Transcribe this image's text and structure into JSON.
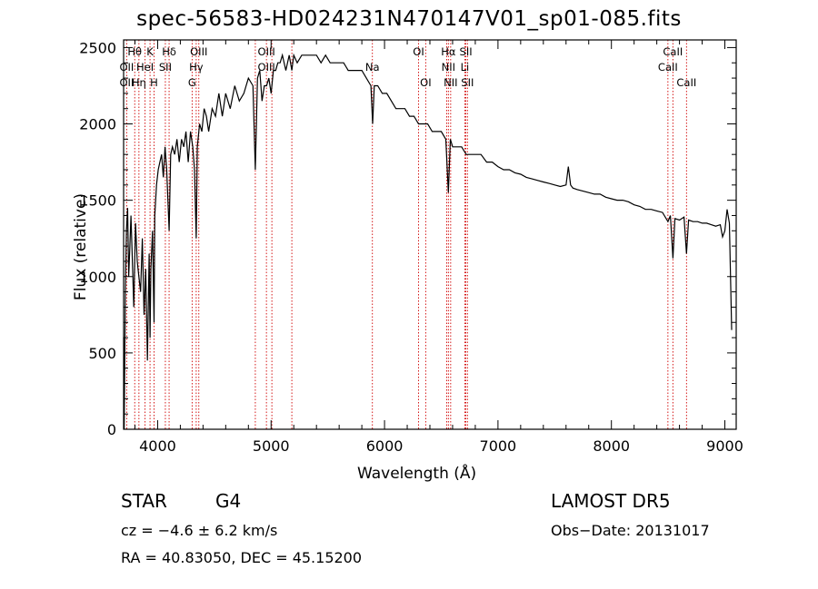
{
  "chart_data": {
    "type": "line",
    "title": "spec-56583-HD024231N470147V01_sp01-085.fits",
    "xlabel": "Wavelength (Å)",
    "ylabel": "Flux (relative)",
    "xlim": [
      3700,
      9100
    ],
    "ylim": [
      0,
      2550
    ],
    "xticks": [
      4000,
      5000,
      6000,
      7000,
      8000,
      9000
    ],
    "yticks": [
      0,
      500,
      1000,
      1500,
      2000,
      2500
    ],
    "tick_labels": {
      "x": [
        "4000",
        "5000",
        "6000",
        "7000",
        "8000",
        "9000"
      ],
      "y": [
        "0",
        "500",
        "1000",
        "1500",
        "2000",
        "2500"
      ]
    },
    "series": [
      {
        "x": [
          3700,
          3705,
          3715,
          3725,
          3735,
          3745,
          3755,
          3765,
          3775,
          3790,
          3805,
          3820,
          3835,
          3850,
          3865,
          3880,
          3895,
          3910,
          3925,
          3933,
          3940,
          3955,
          3968,
          3975,
          3990,
          4005,
          4020,
          4035,
          4050,
          4065,
          4080,
          4101,
          4115,
          4130,
          4150,
          4170,
          4190,
          4210,
          4230,
          4250,
          4270,
          4290,
          4310,
          4325,
          4340,
          4350,
          4370,
          4390,
          4410,
          4430,
          4450,
          4480,
          4510,
          4540,
          4570,
          4600,
          4640,
          4680,
          4720,
          4760,
          4800,
          4840,
          4861,
          4880,
          4900,
          4920,
          4940,
          4960,
          4980,
          5000,
          5020,
          5040,
          5060,
          5080,
          5100,
          5130,
          5160,
          5183,
          5200,
          5230,
          5270,
          5300,
          5330,
          5360,
          5400,
          5440,
          5480,
          5520,
          5560,
          5600,
          5640,
          5680,
          5720,
          5760,
          5800,
          5840,
          5880,
          5895,
          5910,
          5940,
          5980,
          6020,
          6060,
          6100,
          6140,
          6180,
          6220,
          6260,
          6300,
          6340,
          6380,
          6420,
          6460,
          6500,
          6540,
          6563,
          6580,
          6600,
          6640,
          6680,
          6720,
          6760,
          6800,
          6850,
          6900,
          6950,
          7000,
          7050,
          7100,
          7150,
          7200,
          7250,
          7300,
          7350,
          7400,
          7450,
          7500,
          7550,
          7600,
          7620,
          7640,
          7660,
          7700,
          7750,
          7800,
          7850,
          7900,
          7950,
          8000,
          8050,
          8100,
          8150,
          8200,
          8250,
          8300,
          8350,
          8400,
          8450,
          8498,
          8520,
          8542,
          8560,
          8600,
          8640,
          8662,
          8680,
          8720,
          8760,
          8800,
          8840,
          8880,
          8920,
          8960,
          8980,
          9000,
          9020,
          9040,
          9060
        ],
        "values": [
          600,
          0,
          900,
          1300,
          1450,
          1000,
          1200,
          1400,
          1150,
          800,
          1350,
          1100,
          1000,
          900,
          1250,
          750,
          1050,
          450,
          1150,
          600,
          1050,
          1300,
          700,
          1400,
          1600,
          1700,
          1750,
          1800,
          1650,
          1850,
          1700,
          1300,
          1800,
          1850,
          1800,
          1900,
          1750,
          1900,
          1850,
          1950,
          1750,
          1950,
          1850,
          1700,
          1250,
          1850,
          2000,
          1950,
          2100,
          2050,
          1950,
          2100,
          2050,
          2200,
          2050,
          2200,
          2100,
          2250,
          2150,
          2200,
          2300,
          2250,
          1700,
          2300,
          2350,
          2150,
          2250,
          2250,
          2300,
          2200,
          2350,
          2350,
          2400,
          2400,
          2450,
          2350,
          2450,
          2350,
          2450,
          2400,
          2450,
          2450,
          2450,
          2450,
          2450,
          2400,
          2450,
          2400,
          2400,
          2400,
          2400,
          2350,
          2350,
          2350,
          2350,
          2300,
          2250,
          2000,
          2250,
          2250,
          2200,
          2200,
          2150,
          2100,
          2100,
          2100,
          2050,
          2050,
          2000,
          2000,
          2000,
          1950,
          1950,
          1950,
          1900,
          1550,
          1900,
          1850,
          1850,
          1850,
          1800,
          1800,
          1800,
          1800,
          1750,
          1750,
          1720,
          1700,
          1700,
          1680,
          1670,
          1650,
          1640,
          1630,
          1620,
          1610,
          1600,
          1590,
          1600,
          1720,
          1600,
          1580,
          1570,
          1560,
          1550,
          1540,
          1540,
          1520,
          1510,
          1500,
          1500,
          1490,
          1470,
          1460,
          1440,
          1440,
          1430,
          1420,
          1360,
          1400,
          1120,
          1380,
          1370,
          1390,
          1150,
          1370,
          1360,
          1360,
          1350,
          1350,
          1340,
          1330,
          1340,
          1260,
          1300,
          1440,
          1350,
          650
        ]
      }
    ],
    "line_labels": [
      {
        "text": "Hθ",
        "x": 3798,
        "row": 1
      },
      {
        "text": "K",
        "x": 3933,
        "row": 1
      },
      {
        "text": "Hδ",
        "x": 4101,
        "row": 1
      },
      {
        "text": "OIII",
        "x": 4363,
        "row": 1
      },
      {
        "text": "OIII",
        "x": 4959,
        "row": 1
      },
      {
        "text": "OI",
        "x": 6300,
        "row": 1
      },
      {
        "text": "Hα",
        "x": 6563,
        "row": 1
      },
      {
        "text": "SII",
        "x": 6717,
        "row": 1
      },
      {
        "text": "CaII",
        "x": 8542,
        "row": 1
      },
      {
        "text": "OII",
        "x": 3727,
        "row": 2
      },
      {
        "text": "HeI",
        "x": 3889,
        "row": 2
      },
      {
        "text": "SII",
        "x": 4068,
        "row": 2
      },
      {
        "text": "Hγ",
        "x": 4340,
        "row": 2
      },
      {
        "text": "OIII",
        "x": 4959,
        "row": 2
      },
      {
        "text": "Na",
        "x": 5893,
        "row": 2
      },
      {
        "text": "NII",
        "x": 6563,
        "row": 2
      },
      {
        "text": "Li",
        "x": 6708,
        "row": 2
      },
      {
        "text": "CaII",
        "x": 8498,
        "row": 2
      },
      {
        "text": "OII",
        "x": 3727,
        "row": 3
      },
      {
        "text": "Hη",
        "x": 3835,
        "row": 3
      },
      {
        "text": "H",
        "x": 3968,
        "row": 3
      },
      {
        "text": "G",
        "x": 4304,
        "row": 3
      },
      {
        "text": "OI",
        "x": 6363,
        "row": 3
      },
      {
        "text": "NII",
        "x": 6583,
        "row": 3
      },
      {
        "text": "SII",
        "x": 6731,
        "row": 3
      },
      {
        "text": "CaII",
        "x": 8662,
        "row": 3
      }
    ],
    "line_markers": [
      3727,
      3798,
      3835,
      3889,
      3933,
      3968,
      4068,
      4101,
      4304,
      4340,
      4363,
      4861,
      4959,
      5007,
      5183,
      5893,
      6300,
      6363,
      6548,
      6563,
      6583,
      6708,
      6717,
      6731,
      8498,
      8542,
      8662
    ]
  },
  "info": {
    "object_type": "STAR",
    "subclass": "G4",
    "survey": "LAMOST  DR5",
    "cz": "cz = −4.6 ± 6.2 km/s",
    "obs_date": "Obs−Date: 20131017",
    "coords": "RA =  40.83050, DEC =  45.15200"
  }
}
